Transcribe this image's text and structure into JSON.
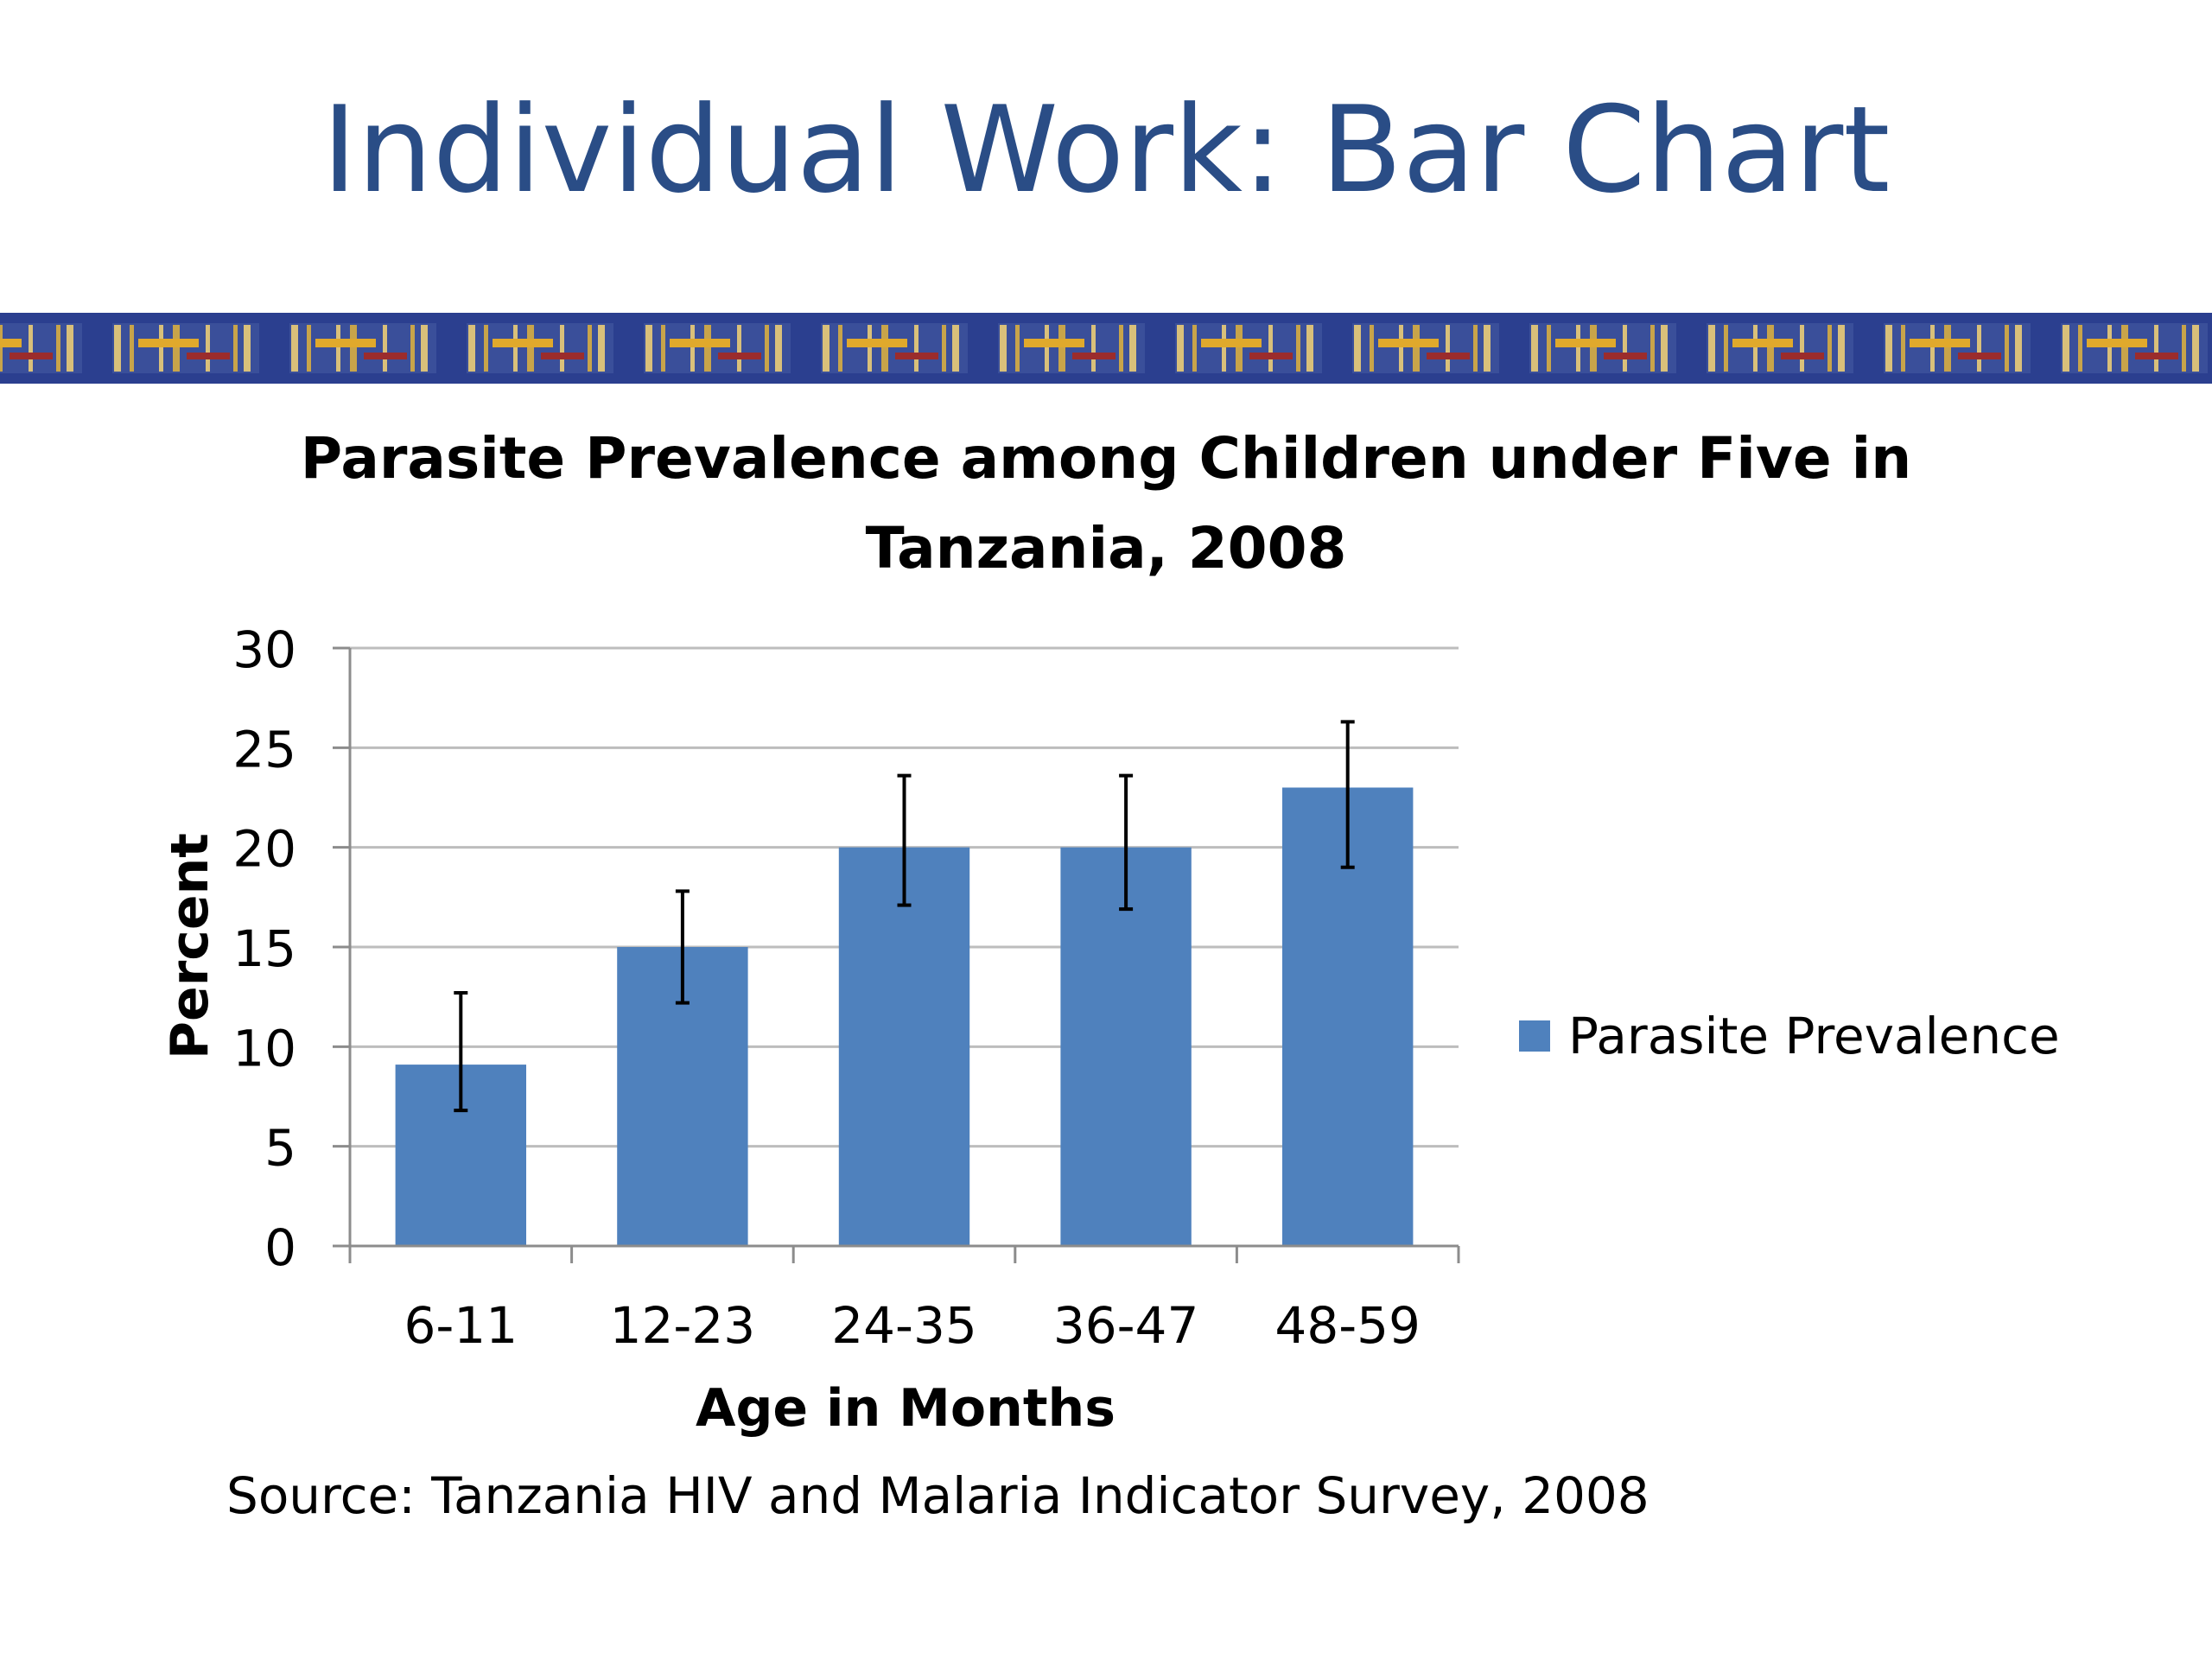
{
  "slide": {
    "title": "Individual Work: Bar Chart",
    "source": "Source: Tanzania HIV and Malaria Indicator Survey, 2008"
  },
  "colors": {
    "title": "#2a4d86",
    "bar": "#4f81bd",
    "banner_base": "#2b3f8f",
    "banner_accent": "#e0a92c"
  },
  "chart_data": {
    "type": "bar",
    "title_line1": "Parasite Prevalence among Children under Five in",
    "title_line2": "Tanzania, 2008",
    "xlabel": "Age in Months",
    "ylabel": "Percent",
    "ylim": [
      0,
      30
    ],
    "yticks": [
      "0",
      "5",
      "10",
      "15",
      "20",
      "25",
      "30"
    ],
    "categories": [
      "6-11",
      "12-23",
      "24-35",
      "36-47",
      "48-59"
    ],
    "series": [
      {
        "name": "Parasite Prevalence",
        "values": [
          9.1,
          15,
          20,
          20,
          23
        ],
        "error_low": [
          6.8,
          12.2,
          17.1,
          16.9,
          19
        ],
        "error_high": [
          12.7,
          17.8,
          23.6,
          23.6,
          26.3
        ]
      }
    ],
    "grid": true,
    "legend": "right"
  }
}
